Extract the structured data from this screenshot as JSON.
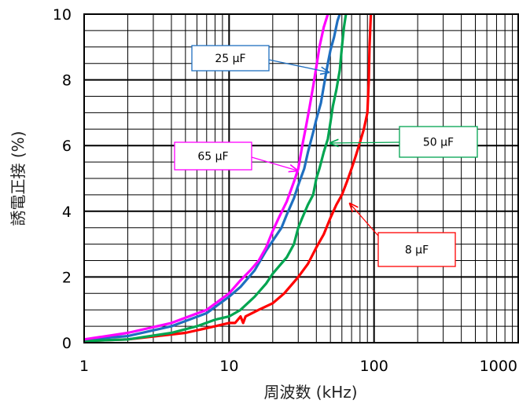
{
  "chart_data": {
    "type": "line",
    "title": "",
    "xlabel": "周波数 (kHz)",
    "ylabel": "誘電正接 (%)",
    "xscale": "log",
    "xlim": [
      1,
      1000
    ],
    "ylim": [
      0,
      10
    ],
    "x_ticks": [
      "1",
      "10",
      "100",
      "1000"
    ],
    "y_ticks": [
      "0",
      "2",
      "4",
      "6",
      "8",
      "10"
    ],
    "grid": true,
    "series": [
      {
        "name": "8 µF",
        "color": "#ff0000",
        "points": [
          [
            1,
            0.05
          ],
          [
            2,
            0.1
          ],
          [
            5,
            0.3
          ],
          [
            8,
            0.5
          ],
          [
            10,
            0.6
          ],
          [
            11,
            0.6
          ],
          [
            12,
            0.8
          ],
          [
            12.5,
            0.6
          ],
          [
            13,
            0.8
          ],
          [
            16,
            1.0
          ],
          [
            20,
            1.2
          ],
          [
            24,
            1.5
          ],
          [
            30,
            2.0
          ],
          [
            35,
            2.4
          ],
          [
            40,
            2.9
          ],
          [
            45,
            3.3
          ],
          [
            50,
            3.8
          ],
          [
            55,
            4.2
          ],
          [
            60,
            4.5
          ],
          [
            65,
            4.9
          ],
          [
            70,
            5.3
          ],
          [
            75,
            5.7
          ],
          [
            80,
            6.1
          ],
          [
            85,
            6.5
          ],
          [
            90,
            7.0
          ],
          [
            92,
            8.0
          ],
          [
            93,
            9.0
          ],
          [
            95,
            10.0
          ]
        ]
      },
      {
        "name": "25 µF",
        "color": "#1f6fc0",
        "points": [
          [
            1,
            0.1
          ],
          [
            2,
            0.2
          ],
          [
            4,
            0.5
          ],
          [
            7,
            0.9
          ],
          [
            10,
            1.4
          ],
          [
            12,
            1.7
          ],
          [
            15,
            2.2
          ],
          [
            18,
            2.8
          ],
          [
            20,
            3.1
          ],
          [
            23,
            3.5
          ],
          [
            25,
            3.9
          ],
          [
            28,
            4.4
          ],
          [
            30,
            4.8
          ],
          [
            33,
            5.3
          ],
          [
            35,
            5.8
          ],
          [
            38,
            6.4
          ],
          [
            40,
            6.8
          ],
          [
            43,
            7.3
          ],
          [
            45,
            7.8
          ],
          [
            48,
            8.5
          ],
          [
            50,
            8.9
          ],
          [
            53,
            9.3
          ],
          [
            56,
            9.8
          ],
          [
            58,
            10.0
          ]
        ]
      },
      {
        "name": "50 µF",
        "color": "#00a550",
        "points": [
          [
            1,
            0.05
          ],
          [
            2,
            0.1
          ],
          [
            4,
            0.3
          ],
          [
            6,
            0.5
          ],
          [
            8,
            0.7
          ],
          [
            10,
            0.8
          ],
          [
            12,
            1.0
          ],
          [
            15,
            1.4
          ],
          [
            18,
            1.8
          ],
          [
            20,
            2.1
          ],
          [
            25,
            2.6
          ],
          [
            28,
            3.0
          ],
          [
            30,
            3.5
          ],
          [
            32,
            3.8
          ],
          [
            35,
            4.2
          ],
          [
            38,
            4.5
          ],
          [
            40,
            5.0
          ],
          [
            42,
            5.3
          ],
          [
            45,
            5.8
          ],
          [
            48,
            6.2
          ],
          [
            50,
            6.7
          ],
          [
            52,
            7.2
          ],
          [
            55,
            7.7
          ],
          [
            58,
            8.3
          ],
          [
            60,
            9.0
          ],
          [
            62,
            9.6
          ],
          [
            64,
            10.0
          ]
        ]
      },
      {
        "name": "65 µF",
        "color": "#ff00ff",
        "points": [
          [
            1,
            0.1
          ],
          [
            2,
            0.3
          ],
          [
            4,
            0.6
          ],
          [
            7,
            1.0
          ],
          [
            10,
            1.5
          ],
          [
            12,
            1.9
          ],
          [
            14,
            2.2
          ],
          [
            16,
            2.5
          ],
          [
            18,
            2.9
          ],
          [
            20,
            3.4
          ],
          [
            22,
            3.8
          ],
          [
            25,
            4.3
          ],
          [
            28,
            4.9
          ],
          [
            30,
            5.3
          ],
          [
            32,
            6.0
          ],
          [
            34,
            6.6
          ],
          [
            36,
            7.2
          ],
          [
            38,
            7.8
          ],
          [
            40,
            8.4
          ],
          [
            42,
            9.0
          ],
          [
            45,
            9.6
          ],
          [
            48,
            10.0
          ]
        ]
      }
    ],
    "annotations": [
      {
        "text": "25 µF",
        "box_color": "#1f6fc0",
        "series": "25 µF"
      },
      {
        "text": "65 µF",
        "box_color": "#ff00ff",
        "series": "65 µF"
      },
      {
        "text": "50 µF",
        "box_color": "#00a550",
        "series": "50 µF"
      },
      {
        "text": "8 µF",
        "box_color": "#ff0000",
        "series": "8 µF"
      }
    ]
  }
}
